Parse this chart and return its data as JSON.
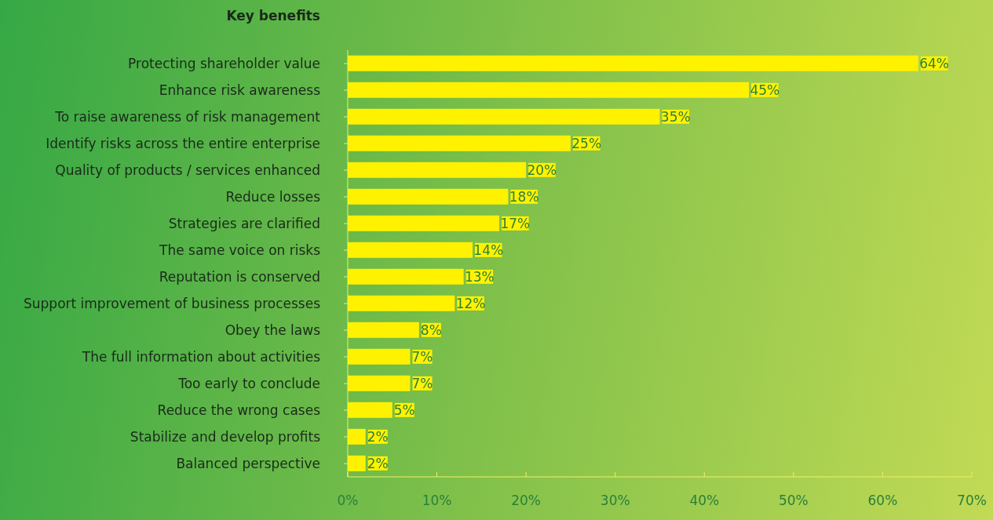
{
  "chart_data": {
    "type": "bar",
    "orientation": "horizontal",
    "title": "Key benefits",
    "categories": [
      "Protecting shareholder value",
      "Enhance risk awareness",
      "To raise awareness of risk management",
      "Identify risks across the entire enterprise",
      "Quality of products / services enhanced",
      "Reduce losses",
      "Strategies are clarified",
      "The same voice on risks",
      "Reputation is conserved",
      "Support improvement of business processes",
      "Obey the laws",
      "The full information about activities",
      "Too early to conclude",
      "Reduce the wrong cases",
      "Stabilize and develop profits",
      "Balanced perspective"
    ],
    "values": [
      64,
      45,
      35,
      25,
      20,
      18,
      17,
      14,
      13,
      12,
      8,
      7,
      7,
      5,
      2,
      2
    ],
    "value_labels": [
      "64%",
      "45%",
      "35%",
      "25%",
      "20%",
      "18%",
      "17%",
      "14%",
      "13%",
      "12%",
      "8%",
      "7%",
      "7%",
      "5%",
      "2%",
      "2%"
    ],
    "color": "#fff200",
    "xlim": [
      0,
      70
    ],
    "xticks": [
      {
        "value": 0,
        "label": "0%"
      },
      {
        "value": 10,
        "label": "10%"
      },
      {
        "value": 20,
        "label": "20%"
      },
      {
        "value": 30,
        "label": "30%"
      },
      {
        "value": 40,
        "label": "40%"
      },
      {
        "value": 50,
        "label": "50%"
      },
      {
        "value": 60,
        "label": "60%"
      },
      {
        "value": 70,
        "label": "70%"
      }
    ],
    "grid": false,
    "legend": false
  }
}
